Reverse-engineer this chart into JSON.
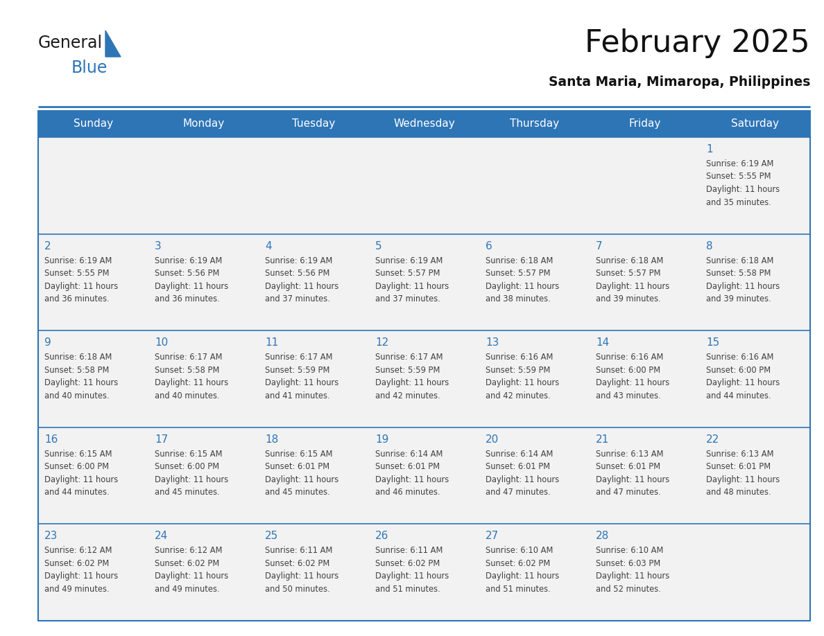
{
  "title": "February 2025",
  "subtitle": "Santa Maria, Mimaropa, Philippines",
  "header_bg": "#2E75B6",
  "header_text": "#FFFFFF",
  "cell_bg": "#F2F2F2",
  "day_number_color": "#2E75B6",
  "text_color": "#404040",
  "line_color": "#2E75B6",
  "days_of_week": [
    "Sunday",
    "Monday",
    "Tuesday",
    "Wednesday",
    "Thursday",
    "Friday",
    "Saturday"
  ],
  "logo_text1": "General",
  "logo_text2": "Blue",
  "logo_color1": "#1A1A1A",
  "logo_color2": "#2E75B6",
  "calendar_data": [
    [
      null,
      null,
      null,
      null,
      null,
      null,
      {
        "day": 1,
        "sunrise": "6:19 AM",
        "sunset": "5:55 PM",
        "daylight": "11 hours and 35 minutes."
      }
    ],
    [
      {
        "day": 2,
        "sunrise": "6:19 AM",
        "sunset": "5:55 PM",
        "daylight": "11 hours and 36 minutes."
      },
      {
        "day": 3,
        "sunrise": "6:19 AM",
        "sunset": "5:56 PM",
        "daylight": "11 hours and 36 minutes."
      },
      {
        "day": 4,
        "sunrise": "6:19 AM",
        "sunset": "5:56 PM",
        "daylight": "11 hours and 37 minutes."
      },
      {
        "day": 5,
        "sunrise": "6:19 AM",
        "sunset": "5:57 PM",
        "daylight": "11 hours and 37 minutes."
      },
      {
        "day": 6,
        "sunrise": "6:18 AM",
        "sunset": "5:57 PM",
        "daylight": "11 hours and 38 minutes."
      },
      {
        "day": 7,
        "sunrise": "6:18 AM",
        "sunset": "5:57 PM",
        "daylight": "11 hours and 39 minutes."
      },
      {
        "day": 8,
        "sunrise": "6:18 AM",
        "sunset": "5:58 PM",
        "daylight": "11 hours and 39 minutes."
      }
    ],
    [
      {
        "day": 9,
        "sunrise": "6:18 AM",
        "sunset": "5:58 PM",
        "daylight": "11 hours and 40 minutes."
      },
      {
        "day": 10,
        "sunrise": "6:17 AM",
        "sunset": "5:58 PM",
        "daylight": "11 hours and 40 minutes."
      },
      {
        "day": 11,
        "sunrise": "6:17 AM",
        "sunset": "5:59 PM",
        "daylight": "11 hours and 41 minutes."
      },
      {
        "day": 12,
        "sunrise": "6:17 AM",
        "sunset": "5:59 PM",
        "daylight": "11 hours and 42 minutes."
      },
      {
        "day": 13,
        "sunrise": "6:16 AM",
        "sunset": "5:59 PM",
        "daylight": "11 hours and 42 minutes."
      },
      {
        "day": 14,
        "sunrise": "6:16 AM",
        "sunset": "6:00 PM",
        "daylight": "11 hours and 43 minutes."
      },
      {
        "day": 15,
        "sunrise": "6:16 AM",
        "sunset": "6:00 PM",
        "daylight": "11 hours and 44 minutes."
      }
    ],
    [
      {
        "day": 16,
        "sunrise": "6:15 AM",
        "sunset": "6:00 PM",
        "daylight": "11 hours and 44 minutes."
      },
      {
        "day": 17,
        "sunrise": "6:15 AM",
        "sunset": "6:00 PM",
        "daylight": "11 hours and 45 minutes."
      },
      {
        "day": 18,
        "sunrise": "6:15 AM",
        "sunset": "6:01 PM",
        "daylight": "11 hours and 45 minutes."
      },
      {
        "day": 19,
        "sunrise": "6:14 AM",
        "sunset": "6:01 PM",
        "daylight": "11 hours and 46 minutes."
      },
      {
        "day": 20,
        "sunrise": "6:14 AM",
        "sunset": "6:01 PM",
        "daylight": "11 hours and 47 minutes."
      },
      {
        "day": 21,
        "sunrise": "6:13 AM",
        "sunset": "6:01 PM",
        "daylight": "11 hours and 47 minutes."
      },
      {
        "day": 22,
        "sunrise": "6:13 AM",
        "sunset": "6:01 PM",
        "daylight": "11 hours and 48 minutes."
      }
    ],
    [
      {
        "day": 23,
        "sunrise": "6:12 AM",
        "sunset": "6:02 PM",
        "daylight": "11 hours and 49 minutes."
      },
      {
        "day": 24,
        "sunrise": "6:12 AM",
        "sunset": "6:02 PM",
        "daylight": "11 hours and 49 minutes."
      },
      {
        "day": 25,
        "sunrise": "6:11 AM",
        "sunset": "6:02 PM",
        "daylight": "11 hours and 50 minutes."
      },
      {
        "day": 26,
        "sunrise": "6:11 AM",
        "sunset": "6:02 PM",
        "daylight": "11 hours and 51 minutes."
      },
      {
        "day": 27,
        "sunrise": "6:10 AM",
        "sunset": "6:02 PM",
        "daylight": "11 hours and 51 minutes."
      },
      {
        "day": 28,
        "sunrise": "6:10 AM",
        "sunset": "6:03 PM",
        "daylight": "11 hours and 52 minutes."
      },
      null
    ]
  ]
}
